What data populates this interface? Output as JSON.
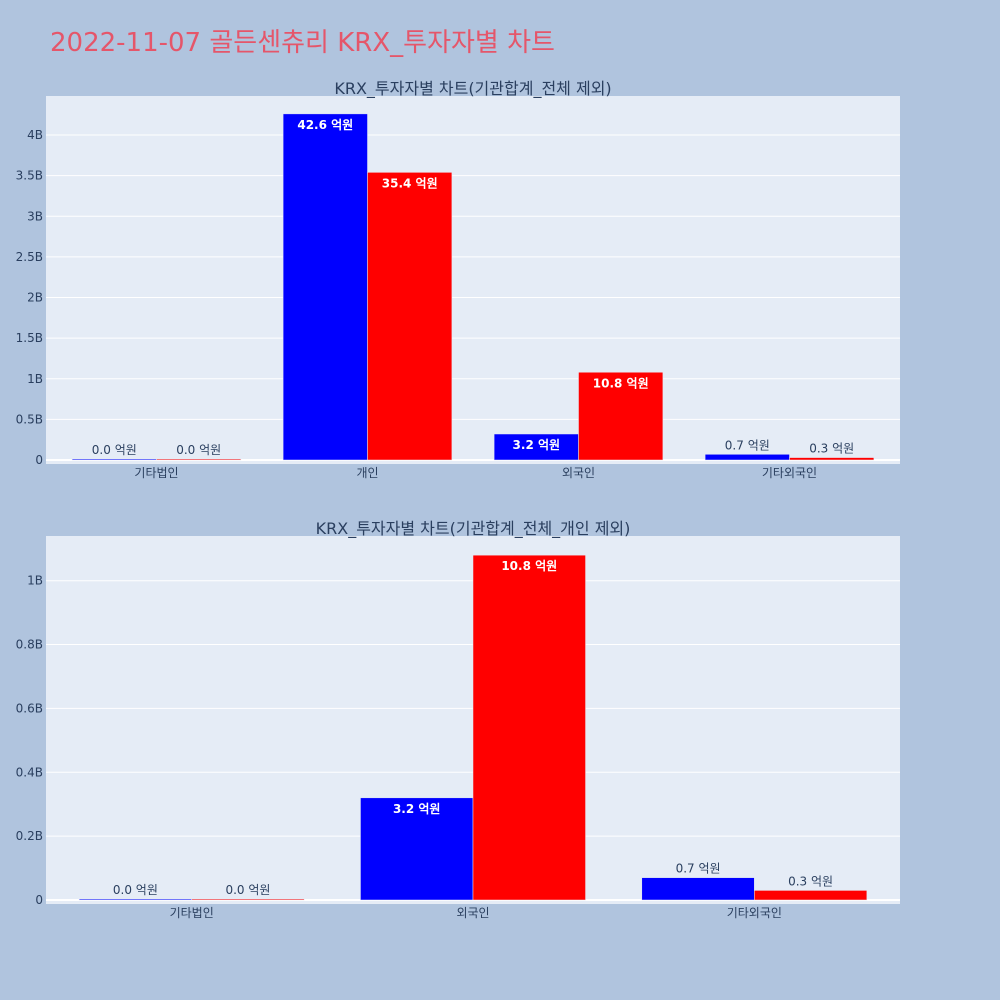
{
  "page": {
    "title": "2022-11-07 골든센츄리 KRX_투자자별 차트"
  },
  "colors": {
    "background": "#b0c4de",
    "plot_background": "#e5ecf6",
    "series_buy": "#0000ff",
    "series_sell": "#ff0000",
    "title": "#e5566a"
  },
  "chart_data": [
    {
      "type": "bar",
      "title": "KRX_투자자별 차트(기관합계_전체 제외)",
      "categories": [
        "기타법인",
        "개인",
        "외국인",
        "기타외국인"
      ],
      "series": [
        {
          "values": [
            0.0,
            4260000000,
            320000000,
            70000000
          ],
          "labels": [
            "0.0 억원",
            "42.6 억원",
            "3.2 억원",
            "0.7 억원"
          ]
        },
        {
          "values": [
            0.0,
            3540000000,
            1080000000,
            30000000
          ],
          "labels": [
            "0.0 억원",
            "35.4 억원",
            "10.8 억원",
            "0.3 억원"
          ]
        }
      ],
      "yticks": [
        {
          "value": 0,
          "label": "0"
        },
        {
          "value": 500000000,
          "label": "0.5B"
        },
        {
          "value": 1000000000,
          "label": "1B"
        },
        {
          "value": 1500000000,
          "label": "1.5B"
        },
        {
          "value": 2000000000,
          "label": "2B"
        },
        {
          "value": 2500000000,
          "label": "2.5B"
        },
        {
          "value": 3000000000,
          "label": "3B"
        },
        {
          "value": 3500000000,
          "label": "3.5B"
        },
        {
          "value": 4000000000,
          "label": "4B"
        }
      ],
      "ylim": [
        0,
        4480000000
      ],
      "grid": true,
      "legend": "none"
    },
    {
      "type": "bar",
      "title": "KRX_투자자별 차트(기관합계_전체_개인 제외)",
      "categories": [
        "기타법인",
        "외국인",
        "기타외국인"
      ],
      "series": [
        {
          "values": [
            0.0,
            320000000,
            70000000
          ],
          "labels": [
            "0.0 억원",
            "3.2 억원",
            "0.7 억원"
          ]
        },
        {
          "values": [
            0.0,
            1080000000,
            30000000
          ],
          "labels": [
            "0.0 억원",
            "10.8 억원",
            "0.3 억원"
          ]
        }
      ],
      "yticks": [
        {
          "value": 0,
          "label": "0"
        },
        {
          "value": 200000000,
          "label": "0.2B"
        },
        {
          "value": 400000000,
          "label": "0.4B"
        },
        {
          "value": 600000000,
          "label": "0.6B"
        },
        {
          "value": 800000000,
          "label": "0.8B"
        },
        {
          "value": 1000000000,
          "label": "1B"
        }
      ],
      "ylim": [
        0,
        1140000000
      ],
      "grid": true,
      "legend": "none"
    }
  ]
}
